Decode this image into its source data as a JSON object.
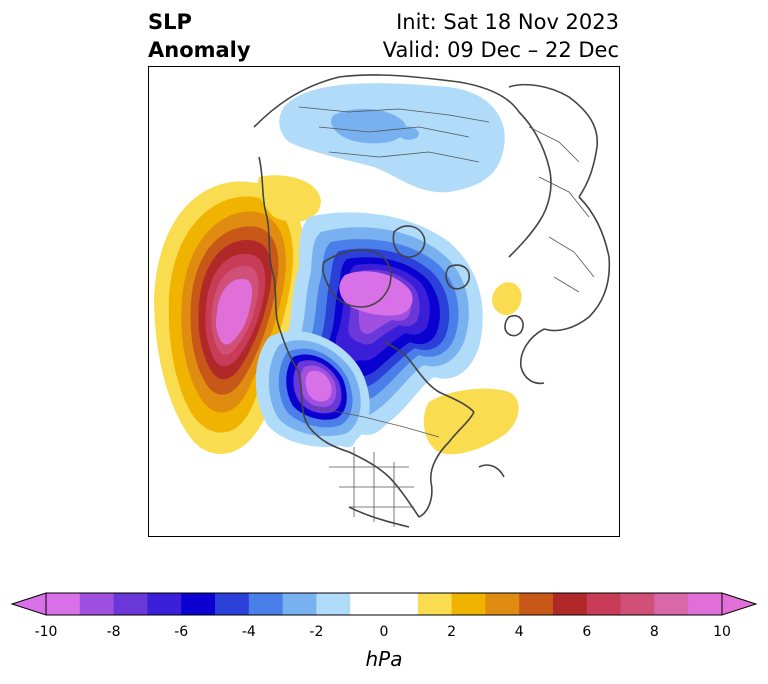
{
  "title": {
    "left_line1": "SLP",
    "left_line2": "Anomaly",
    "right_line1": "Init: Sat 18 Nov 2023",
    "right_line2": "Valid: 09 Dec – 22 Dec"
  },
  "colorbar": {
    "unit": "hPa",
    "ticks": [
      "-10",
      "-8",
      "-6",
      "-4",
      "-2",
      "0",
      "2",
      "4",
      "6",
      "8",
      "10"
    ],
    "tick_values": [
      -10,
      -8,
      -6,
      -4,
      -2,
      0,
      2,
      4,
      6,
      8,
      10
    ],
    "colors": [
      "#d870e8",
      "#a050e0",
      "#6a38d8",
      "#3a1ed8",
      "#0a00d0",
      "#2a40d8",
      "#4a7ee8",
      "#78b0f0",
      "#b0dcfa",
      "#ffffff",
      "#ffffff",
      "#fadc50",
      "#f0b400",
      "#e08c10",
      "#c85818",
      "#b02828",
      "#c83c58",
      "#d05078",
      "#d868a8",
      "#e070d8"
    ],
    "extend_low_color": "#d870e8",
    "extend_high_color": "#e070d8"
  },
  "map": {
    "projection": "polar-stereographic",
    "features": [
      "high-pressure-anomaly-north-pacific",
      "low-pressure-anomaly-arctic",
      "low-pressure-anomaly-western-canada",
      "high-pressure-anomaly-north-atlantic",
      "weak-low-anomaly-siberia"
    ]
  }
}
